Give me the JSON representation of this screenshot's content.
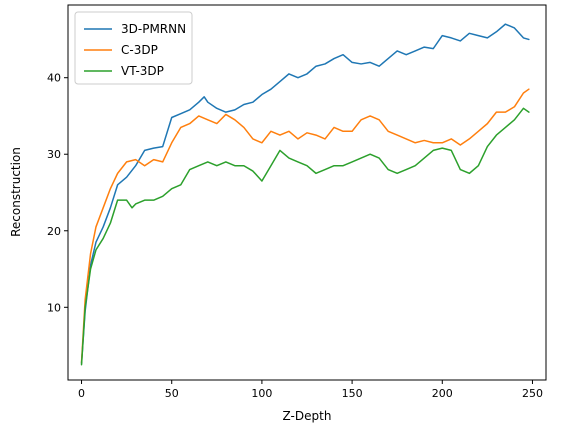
{
  "chart_data": {
    "type": "line",
    "title": "",
    "xlabel": "Z-Depth",
    "ylabel": "Reconstruction",
    "xlim": [
      -7.5,
      257.5
    ],
    "ylim": [
      0.5,
      49.5
    ],
    "xticks": [
      0,
      50,
      100,
      150,
      200,
      250
    ],
    "yticks": [
      10,
      20,
      30,
      40
    ],
    "grid": false,
    "legend_position": "top-left",
    "series": [
      {
        "name": "3D-PMRNN",
        "color": "#1f77b4",
        "x": [
          0,
          2,
          5,
          8,
          12,
          16,
          20,
          25,
          30,
          35,
          40,
          45,
          50,
          55,
          60,
          65,
          68,
          70,
          75,
          80,
          85,
          90,
          95,
          100,
          105,
          110,
          115,
          120,
          125,
          130,
          135,
          140,
          145,
          150,
          155,
          160,
          165,
          170,
          175,
          180,
          185,
          190,
          195,
          200,
          205,
          210,
          215,
          220,
          225,
          230,
          235,
          240,
          245,
          248
        ],
        "y": [
          2.7,
          9.5,
          15.5,
          18.5,
          20.5,
          23.0,
          26.0,
          27.0,
          28.5,
          30.5,
          30.8,
          31.0,
          34.8,
          35.3,
          35.8,
          36.8,
          37.5,
          36.8,
          36.0,
          35.5,
          35.8,
          36.5,
          36.8,
          37.8,
          38.5,
          39.5,
          40.5,
          40.0,
          40.5,
          41.5,
          41.8,
          42.5,
          43.0,
          42.0,
          41.8,
          42.0,
          41.5,
          42.5,
          43.5,
          43.0,
          43.5,
          44.0,
          43.8,
          45.5,
          45.2,
          44.8,
          45.8,
          45.5,
          45.2,
          46.0,
          47.0,
          46.5,
          45.2,
          45.0
        ]
      },
      {
        "name": "C-3DP",
        "color": "#ff7f0e",
        "x": [
          0,
          2,
          5,
          8,
          12,
          16,
          20,
          25,
          30,
          35,
          40,
          45,
          50,
          55,
          60,
          65,
          70,
          75,
          80,
          85,
          90,
          95,
          100,
          105,
          110,
          115,
          120,
          125,
          130,
          135,
          140,
          145,
          150,
          155,
          160,
          165,
          170,
          175,
          180,
          185,
          190,
          195,
          200,
          205,
          210,
          215,
          220,
          225,
          230,
          235,
          240,
          245,
          248
        ],
        "y": [
          2.8,
          11.0,
          17.0,
          20.5,
          23.0,
          25.5,
          27.5,
          29.0,
          29.3,
          28.5,
          29.3,
          29.0,
          31.5,
          33.5,
          34.0,
          35.0,
          34.5,
          34.0,
          35.2,
          34.5,
          33.5,
          32.0,
          31.5,
          33.0,
          32.5,
          33.0,
          32.0,
          32.8,
          32.5,
          32.0,
          33.5,
          33.0,
          33.0,
          34.5,
          35.0,
          34.5,
          33.0,
          32.5,
          32.0,
          31.5,
          31.8,
          31.5,
          31.5,
          32.0,
          31.2,
          32.0,
          33.0,
          34.0,
          35.5,
          35.5,
          36.2,
          38.0,
          38.5
        ]
      },
      {
        "name": "VT-3DP",
        "color": "#2ca02c",
        "x": [
          0,
          2,
          5,
          8,
          12,
          16,
          20,
          25,
          28,
          30,
          35,
          40,
          45,
          50,
          55,
          60,
          65,
          70,
          75,
          80,
          85,
          90,
          95,
          100,
          105,
          110,
          115,
          120,
          125,
          130,
          135,
          140,
          145,
          150,
          155,
          160,
          165,
          170,
          175,
          180,
          185,
          190,
          195,
          200,
          205,
          210,
          215,
          220,
          225,
          230,
          235,
          240,
          245,
          248
        ],
        "y": [
          2.5,
          10.0,
          15.0,
          17.5,
          19.0,
          21.0,
          24.0,
          24.0,
          23.0,
          23.5,
          24.0,
          24.0,
          24.5,
          25.5,
          26.0,
          28.0,
          28.5,
          29.0,
          28.5,
          29.0,
          28.5,
          28.5,
          27.8,
          26.5,
          28.5,
          30.5,
          29.5,
          29.0,
          28.5,
          27.5,
          28.0,
          28.5,
          28.5,
          29.0,
          29.5,
          30.0,
          29.5,
          28.0,
          27.5,
          28.0,
          28.5,
          29.5,
          30.5,
          30.8,
          30.5,
          28.0,
          27.5,
          28.5,
          31.0,
          32.5,
          33.5,
          34.5,
          36.0,
          35.5
        ]
      }
    ]
  }
}
